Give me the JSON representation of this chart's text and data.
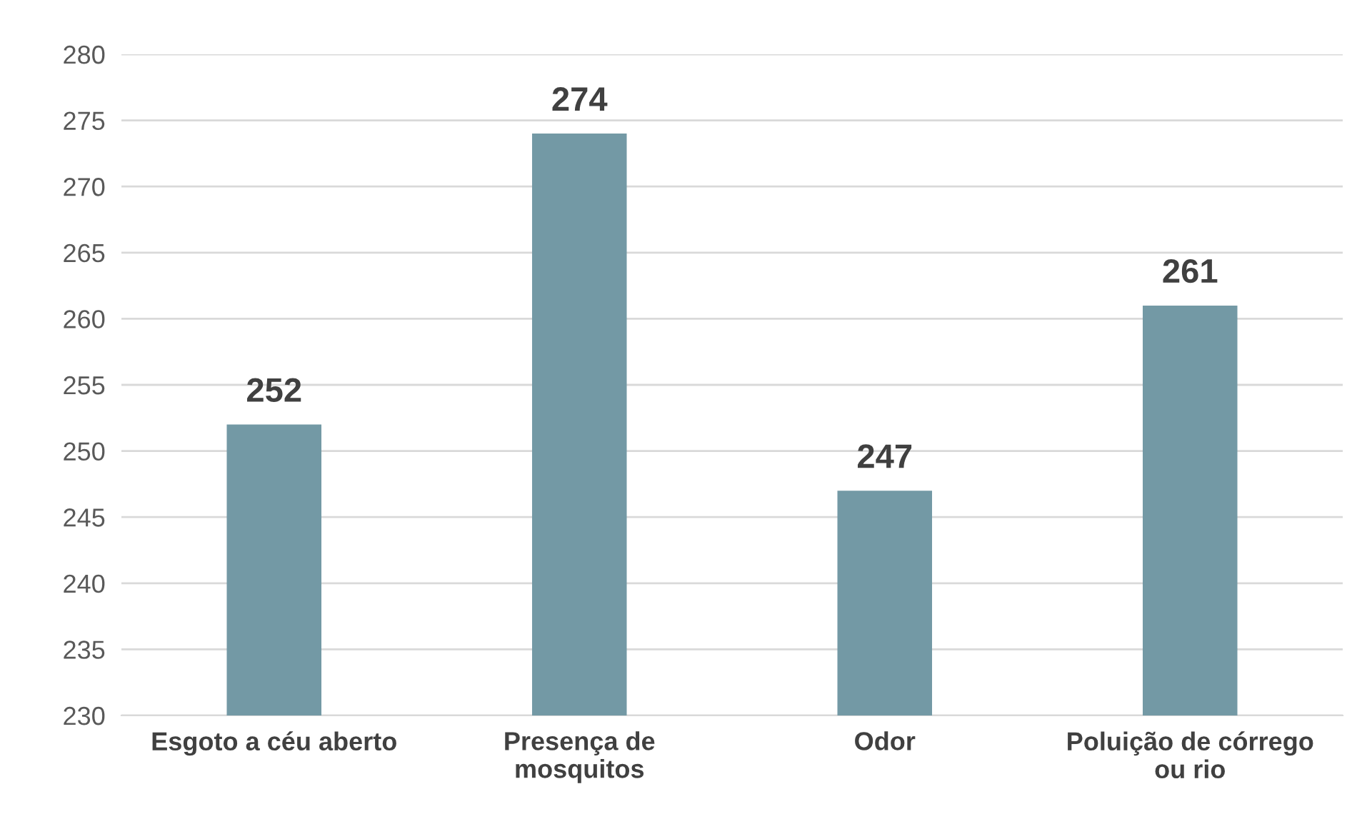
{
  "chart_data": {
    "type": "bar",
    "categories": [
      "Esgoto a céu aberto",
      "Presença de mosquitos",
      "Odor",
      "Poluição de córrego ou rio"
    ],
    "values": [
      252,
      274,
      247,
      261
    ],
    "color": "#7399a5",
    "ylim": [
      230,
      280
    ],
    "yticks": [
      230,
      235,
      240,
      245,
      250,
      255,
      260,
      265,
      270,
      275,
      280
    ],
    "grid": "y",
    "data_labels": true
  }
}
